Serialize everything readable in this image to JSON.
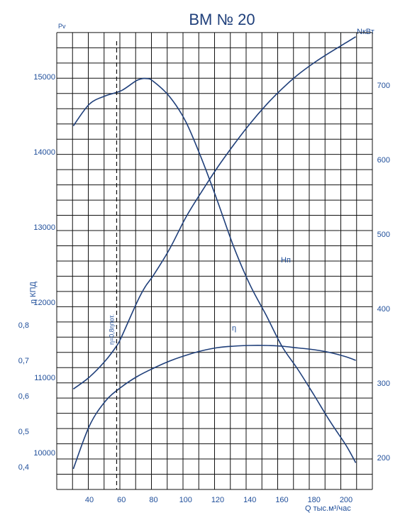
{
  "chart_data": {
    "type": "line",
    "title": "ВМ № 20",
    "axes": {
      "x": {
        "label": "Q тыс.м³/час",
        "ticks": [
          40,
          60,
          80,
          100,
          120,
          140,
          160,
          180,
          200
        ],
        "range": [
          30,
          210
        ]
      },
      "y_left": {
        "label": "Pv",
        "ticks": [
          10000,
          11000,
          12000,
          13000,
          14000,
          15000
        ],
        "range": [
          9600,
          15600
        ]
      },
      "y_eff": {
        "label": "η КПД",
        "ticks": [
          "0,4",
          "0,5",
          "0,6",
          "0,7",
          "0,8"
        ],
        "tick_values": [
          0.4,
          0.5,
          0.6,
          0.7,
          0.8
        ],
        "range": [
          0.4,
          0.8
        ]
      },
      "y_right": {
        "label": "NкВт",
        "ticks": [
          200,
          300,
          400,
          500,
          600,
          700
        ],
        "range": [
          162,
          728
        ]
      }
    },
    "grid": true,
    "series": [
      {
        "name": "Hп",
        "axis": "y_left",
        "x": [
          30,
          40,
          50,
          60,
          70,
          76,
          80,
          90,
          100,
          110,
          120,
          130,
          140,
          150,
          160,
          170,
          180,
          190,
          200,
          206
        ],
        "values": [
          14410,
          14700,
          14810,
          14880,
          15020,
          15040,
          15000,
          14800,
          14470,
          13970,
          13400,
          12800,
          12300,
          11900,
          11480,
          11170,
          10830,
          10480,
          10160,
          9930
        ]
      },
      {
        "name": "η",
        "axis": "y_eff",
        "x": [
          30,
          40,
          50,
          60,
          70,
          80,
          90,
          100,
          110,
          120,
          130,
          140,
          150,
          160,
          170,
          180,
          190,
          200,
          206
        ],
        "values": [
          0.394,
          0.515,
          0.585,
          0.625,
          0.655,
          0.678,
          0.698,
          0.714,
          0.727,
          0.736,
          0.74,
          0.742,
          0.742,
          0.74,
          0.735,
          0.73,
          0.722,
          0.71,
          0.7
        ]
      },
      {
        "name": "N",
        "axis": "y_right",
        "x": [
          30,
          40,
          50,
          57,
          60,
          70,
          75,
          80,
          90,
          100,
          110,
          120,
          130,
          140,
          150,
          160,
          170,
          180,
          190,
          200,
          206
        ],
        "values": [
          292,
          308,
          330,
          350,
          362,
          410,
          430,
          445,
          480,
          522,
          557,
          590,
          620,
          648,
          673,
          695,
          714,
          730,
          744,
          757,
          765
        ]
      }
    ],
    "annotations": [
      {
        "text": "Hп",
        "series": "Hп"
      },
      {
        "text": "η",
        "series": "η"
      },
      {
        "text": "η=0,8ηпот.",
        "x": 57
      }
    ]
  }
}
